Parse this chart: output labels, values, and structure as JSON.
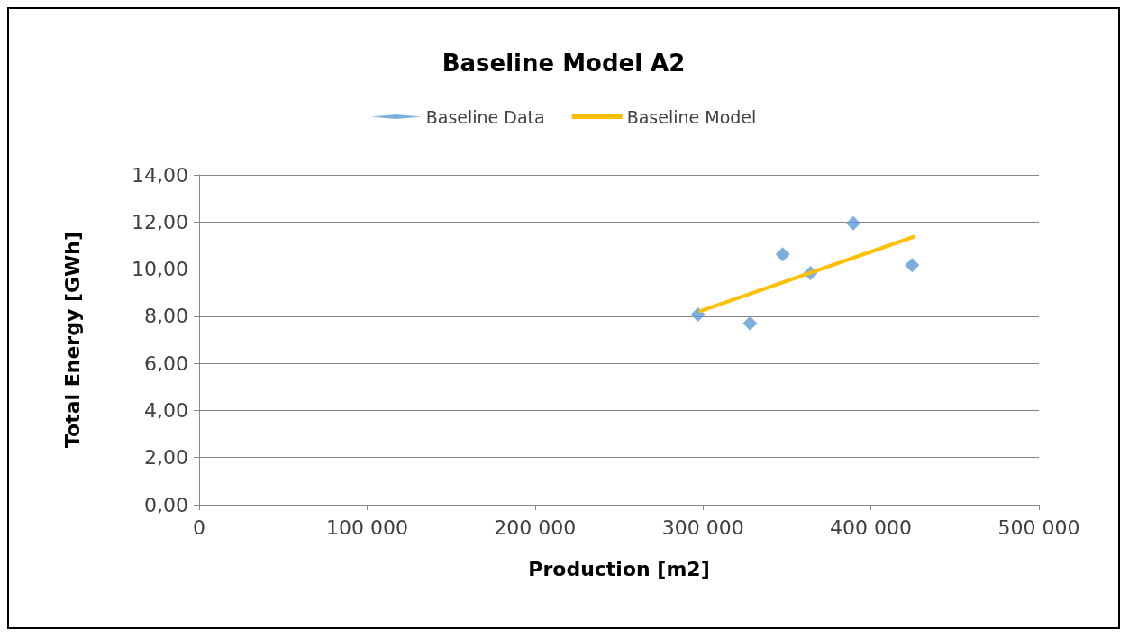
{
  "chart_data": {
    "type": "scatter",
    "title": "Baseline Model A2",
    "xlabel": "Production [m2]",
    "ylabel": "Total Energy [GWh]",
    "xlim": [
      0,
      500000
    ],
    "xticks": [
      0,
      {
        "value": 100000,
        "label": "100 000"
      },
      {
        "value": 200000,
        "label": "200 000"
      },
      {
        "value": 300000,
        "label": "300 000"
      },
      {
        "value": 400000,
        "label": "400 000"
      },
      {
        "value": 500000,
        "label": "500 000"
      }
    ],
    "ylim": [
      0,
      14
    ],
    "yticks": [
      {
        "value": 0,
        "label": "0,00"
      },
      {
        "value": 2,
        "label": "2,00"
      },
      {
        "value": 4,
        "label": "4,00"
      },
      {
        "value": 6,
        "label": "6,00"
      },
      {
        "value": 8,
        "label": "8,00"
      },
      {
        "value": 10,
        "label": "10,00"
      },
      {
        "value": 12,
        "label": "12,00"
      },
      {
        "value": 14,
        "label": "14,00"
      }
    ],
    "grid": "y",
    "legend": "top",
    "series": [
      {
        "name": "Baseline Data",
        "marker": "diamond",
        "color": "#5b9bd5",
        "x": [
          297000,
          328000,
          347500,
          364000,
          389500,
          424500
        ],
        "values": [
          8.07,
          7.7,
          10.62,
          9.83,
          11.94,
          10.17
        ]
      },
      {
        "name": "Baseline Model",
        "type": "line",
        "marker": "none",
        "color": "#ffc000",
        "x": [
          298500,
          425500
        ],
        "values": [
          8.22,
          11.37
        ]
      }
    ]
  }
}
